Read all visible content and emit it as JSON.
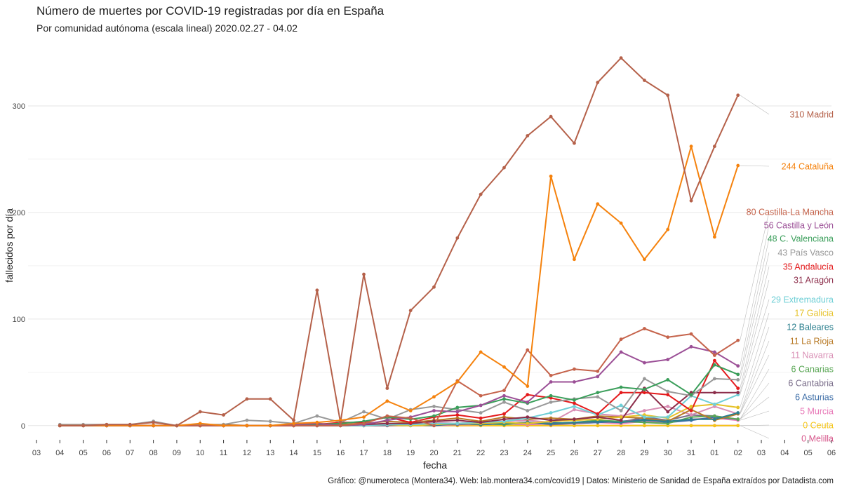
{
  "chart_data": {
    "type": "line",
    "title": "Número de muertes por COVID-19 registradas por día en España",
    "subtitle": "Por comunidad autónoma (escala lineal) 2020.02.27 - 04.02",
    "x_label": "fecha",
    "y_label": "fallecidos por día",
    "caption": "Gráfico: @numeroteca (Montera34). Web: lab.montera34.com/covid19 | Datos: Ministerio de Sanidad de España extraídos por Datadista.com",
    "categories": [
      "03",
      "04",
      "05",
      "06",
      "07",
      "08",
      "09",
      "10",
      "11",
      "12",
      "13",
      "14",
      "15",
      "16",
      "17",
      "18",
      "19",
      "20",
      "21",
      "22",
      "23",
      "24",
      "25",
      "26",
      "27",
      "28",
      "29",
      "30",
      "31",
      "01",
      "02",
      "03",
      "04",
      "05",
      "06"
    ],
    "ylim": [
      -12,
      350
    ],
    "yticks": [
      0,
      100,
      200,
      300
    ],
    "grid": true,
    "series": [
      {
        "label": "310 Madrid",
        "color": "#b5614a",
        "values": [
          null,
          0,
          0,
          1,
          1,
          3,
          0,
          13,
          10,
          25,
          25,
          5,
          127,
          3,
          142,
          35,
          108,
          130,
          176,
          217,
          242,
          272,
          290,
          265,
          322,
          345,
          324,
          310,
          211,
          262,
          310,
          null,
          null,
          null,
          null
        ]
      },
      {
        "label": "244 Cataluña",
        "color": "#f5820d",
        "values": [
          null,
          0,
          0,
          0,
          0,
          0,
          0,
          2,
          0,
          0,
          0,
          2,
          3,
          5,
          8,
          23,
          14,
          27,
          41,
          69,
          55,
          37,
          234,
          156,
          208,
          190,
          156,
          184,
          262,
          177,
          244,
          null,
          null,
          null,
          null
        ]
      },
      {
        "label": "80 Castilla-La Mancha",
        "color": "#c5634b",
        "values": [
          null,
          0,
          0,
          0,
          0,
          0,
          0,
          0,
          0,
          0,
          0,
          0,
          0,
          0,
          2,
          9,
          7,
          0,
          42,
          28,
          33,
          71,
          47,
          53,
          51,
          81,
          91,
          83,
          86,
          66,
          80,
          null,
          null,
          null,
          null
        ]
      },
      {
        "label": "56 Castilla y León",
        "color": "#9b4f96",
        "values": [
          null,
          0,
          0,
          0,
          0,
          0,
          0,
          0,
          0,
          0,
          0,
          1,
          2,
          0,
          1,
          5,
          8,
          14,
          13,
          19,
          28,
          22,
          41,
          41,
          46,
          69,
          59,
          62,
          74,
          69,
          56,
          null,
          null,
          null,
          null
        ]
      },
      {
        "label": "48 C. Valenciana",
        "color": "#3a9e5a",
        "values": [
          null,
          0,
          0,
          0,
          0,
          0,
          0,
          0,
          0,
          0,
          0,
          1,
          1,
          2,
          4,
          8,
          6,
          9,
          17,
          19,
          25,
          21,
          28,
          24,
          31,
          36,
          34,
          43,
          29,
          57,
          48,
          null,
          null,
          null,
          null
        ]
      },
      {
        "label": "43 País Vasco",
        "color": "#999999",
        "values": [
          null,
          1,
          1,
          1,
          1,
          4,
          0,
          1,
          1,
          5,
          4,
          2,
          9,
          3,
          13,
          6,
          15,
          18,
          15,
          12,
          22,
          14,
          22,
          25,
          27,
          14,
          44,
          32,
          28,
          44,
          43,
          null,
          null,
          null,
          null
        ]
      },
      {
        "label": "35 Andalucía",
        "color": "#e41a1c",
        "values": [
          null,
          0,
          0,
          0,
          0,
          0,
          0,
          0,
          0,
          0,
          0,
          0,
          1,
          3,
          3,
          8,
          3,
          8,
          10,
          7,
          11,
          29,
          26,
          21,
          11,
          31,
          31,
          29,
          14,
          61,
          35,
          null,
          null,
          null,
          null
        ]
      },
      {
        "label": "31 Aragón",
        "color": "#8c2d4a",
        "values": [
          null,
          0,
          0,
          0,
          0,
          0,
          0,
          0,
          0,
          0,
          0,
          0,
          0,
          0,
          1,
          2,
          2,
          4,
          5,
          3,
          6,
          8,
          5,
          6,
          8,
          5,
          35,
          13,
          31,
          31,
          31,
          null,
          null,
          null,
          null
        ]
      },
      {
        "label": "29 Extremadura",
        "color": "#6fcfd6",
        "values": [
          null,
          0,
          0,
          0,
          0,
          0,
          0,
          0,
          0,
          0,
          0,
          0,
          0,
          0,
          0,
          1,
          1,
          2,
          2,
          3,
          4,
          7,
          12,
          18,
          10,
          19,
          8,
          8,
          28,
          20,
          29,
          null,
          null,
          null,
          null
        ]
      },
      {
        "label": "17 Galicia",
        "color": "#e6c229",
        "values": [
          null,
          0,
          0,
          0,
          0,
          0,
          0,
          0,
          0,
          0,
          0,
          0,
          0,
          0,
          0,
          1,
          0,
          1,
          2,
          2,
          3,
          2,
          4,
          5,
          6,
          8,
          10,
          7,
          18,
          20,
          17,
          null,
          null,
          null,
          null
        ]
      },
      {
        "label": "12 Baleares",
        "color": "#2b7f8e",
        "values": [
          null,
          0,
          0,
          0,
          0,
          0,
          0,
          0,
          0,
          0,
          0,
          0,
          0,
          0,
          0,
          1,
          1,
          0,
          2,
          1,
          2,
          3,
          2,
          3,
          4,
          3,
          5,
          4,
          6,
          6,
          12,
          null,
          null,
          null,
          null
        ]
      },
      {
        "label": "11 La Rioja",
        "color": "#b87a26",
        "values": [
          null,
          0,
          0,
          0,
          0,
          0,
          0,
          0,
          1,
          0,
          0,
          1,
          2,
          1,
          2,
          4,
          3,
          5,
          7,
          4,
          8,
          6,
          7,
          6,
          9,
          8,
          7,
          4,
          15,
          5,
          11,
          null,
          null,
          null,
          null
        ]
      },
      {
        "label": "11 Navarra",
        "color": "#d98fb5",
        "values": [
          null,
          0,
          0,
          0,
          0,
          0,
          0,
          0,
          0,
          0,
          0,
          0,
          0,
          0,
          1,
          2,
          1,
          3,
          2,
          4,
          4,
          5,
          3,
          15,
          11,
          9,
          14,
          18,
          10,
          18,
          11,
          null,
          null,
          null,
          null
        ]
      },
      {
        "label": "6 Canarias",
        "color": "#5aa755",
        "values": [
          null,
          0,
          0,
          0,
          0,
          0,
          0,
          0,
          0,
          0,
          0,
          0,
          0,
          1,
          0,
          1,
          1,
          1,
          2,
          2,
          1,
          3,
          2,
          3,
          5,
          4,
          3,
          2,
          8,
          9,
          6,
          null,
          null,
          null,
          null
        ]
      },
      {
        "label": "6 Cantabria",
        "color": "#7a6e8a",
        "values": [
          null,
          0,
          0,
          0,
          0,
          0,
          0,
          0,
          0,
          0,
          0,
          0,
          0,
          0,
          0,
          0,
          1,
          1,
          1,
          2,
          2,
          3,
          1,
          2,
          4,
          3,
          8,
          5,
          10,
          9,
          6,
          null,
          null,
          null,
          null
        ]
      },
      {
        "label": "6 Asturias",
        "color": "#3f6fa8",
        "values": [
          null,
          0,
          0,
          0,
          0,
          0,
          0,
          0,
          0,
          0,
          0,
          0,
          0,
          0,
          0,
          1,
          0,
          1,
          2,
          1,
          2,
          2,
          3,
          2,
          3,
          4,
          6,
          3,
          5,
          8,
          6,
          null,
          null,
          null,
          null
        ]
      },
      {
        "label": "5 Murcia",
        "color": "#e87ab8",
        "values": [
          null,
          0,
          0,
          0,
          0,
          0,
          0,
          0,
          0,
          0,
          0,
          0,
          0,
          0,
          0,
          0,
          1,
          0,
          1,
          1,
          2,
          1,
          2,
          2,
          3,
          2,
          4,
          3,
          6,
          7,
          5,
          null,
          null,
          null,
          null
        ]
      },
      {
        "label": "0 Ceuta",
        "color": "#f5c518",
        "values": [
          null,
          0,
          0,
          0,
          0,
          0,
          0,
          0,
          0,
          0,
          0,
          0,
          0,
          0,
          0,
          0,
          0,
          0,
          0,
          0,
          0,
          0,
          0,
          0,
          0,
          0,
          0,
          0,
          0,
          0,
          0,
          null,
          null,
          null,
          null
        ]
      },
      {
        "label": "0 Melilla",
        "color": "#d6558a",
        "values": [
          null,
          0,
          0,
          0,
          0,
          0,
          0,
          0,
          0,
          0,
          0,
          0,
          0,
          0,
          0,
          0,
          0,
          0,
          0,
          0,
          0,
          0,
          0,
          0,
          0,
          0,
          0,
          0,
          0,
          0,
          0,
          null,
          null,
          null,
          null
        ]
      }
    ]
  }
}
